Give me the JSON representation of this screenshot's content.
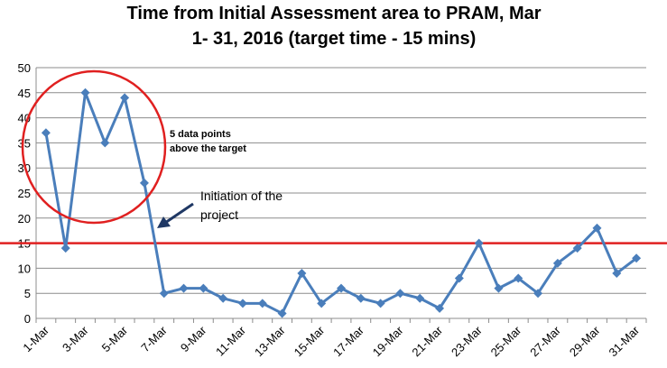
{
  "chart_data": {
    "type": "line",
    "title_line1": "Time from Initial Assessment area to PRAM, Mar",
    "title_line2": "1- 31, 2016 (target time - 15 mins)",
    "xlabel": "",
    "ylabel": "",
    "ylim": [
      0,
      50
    ],
    "yticks": [
      0,
      5,
      10,
      15,
      20,
      25,
      30,
      35,
      40,
      45,
      50
    ],
    "grid": true,
    "x_tick_labels": [
      "1-Mar",
      "3-Mar",
      "5-Mar",
      "7-Mar",
      "9-Mar",
      "11-Mar",
      "13-Mar",
      "15-Mar",
      "17-Mar",
      "19-Mar",
      "21-Mar",
      "23-Mar",
      "25-Mar",
      "27-Mar",
      "29-Mar",
      "31-Mar"
    ],
    "x": [
      "1-Mar",
      "2-Mar",
      "3-Mar",
      "4-Mar",
      "5-Mar",
      "6-Mar",
      "7-Mar",
      "8-Mar",
      "9-Mar",
      "10-Mar",
      "11-Mar",
      "12-Mar",
      "13-Mar",
      "14-Mar",
      "15-Mar",
      "16-Mar",
      "17-Mar",
      "18-Mar",
      "19-Mar",
      "20-Mar",
      "21-Mar",
      "22-Mar",
      "23-Mar",
      "24-Mar",
      "25-Mar",
      "26-Mar",
      "27-Mar",
      "28-Mar",
      "29-Mar",
      "30-Mar",
      "31-Mar"
    ],
    "series": [
      {
        "color": "#4a7ebb",
        "values": [
          37,
          14,
          45,
          35,
          44,
          27,
          5,
          6,
          6,
          4,
          3,
          3,
          1,
          9,
          3,
          6,
          4,
          3,
          5,
          4,
          2,
          8,
          15,
          6,
          8,
          5,
          11,
          14,
          18,
          9,
          12
        ]
      }
    ],
    "target": {
      "value": 15,
      "color": "#e02020"
    },
    "annotations": {
      "circle_text_line1": "5 data points",
      "circle_text_line2": "above the target",
      "arrow_text_line1": "Initiation of the",
      "arrow_text_line2": "project",
      "circle_color": "#e02020",
      "arrow_color": "#1f3864"
    }
  }
}
